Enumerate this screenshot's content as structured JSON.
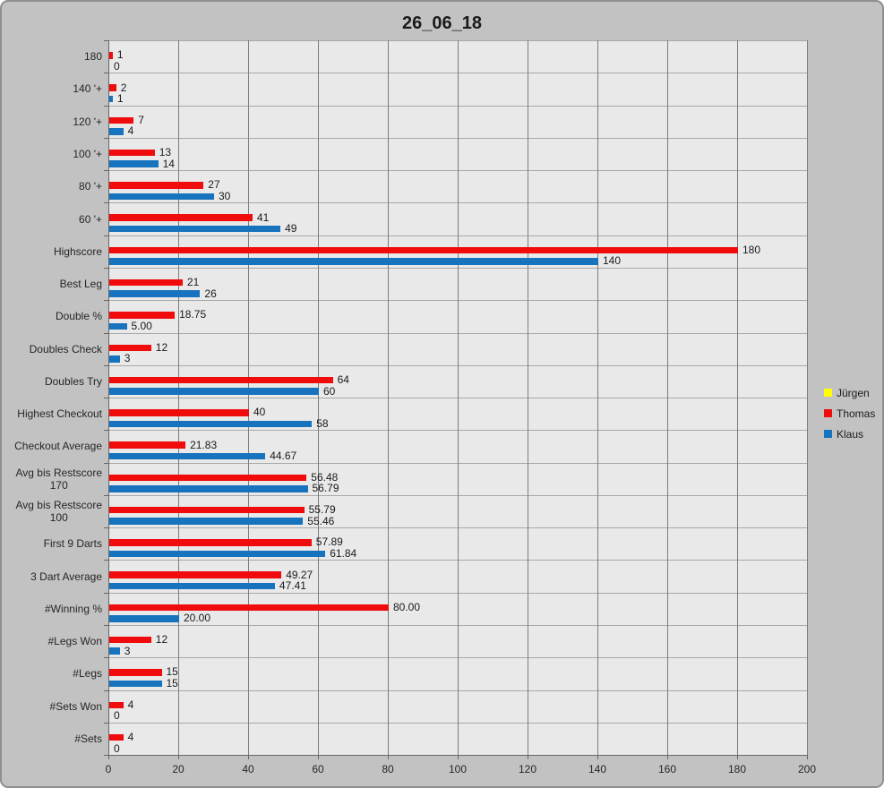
{
  "title": "26_06_18",
  "legend": {
    "position": "right",
    "items": [
      {
        "name": "Jürgen",
        "color": "#ffff00"
      },
      {
        "name": "Thomas",
        "color": "#f00c0c"
      },
      {
        "name": "Klaus",
        "color": "#1873be"
      }
    ]
  },
  "colors": {
    "chart_background": "#c2c2c2",
    "plot_background": "#e9e9e9",
    "vertical_gridline": "#7c7c7c",
    "horizontal_gridline": "#a8a8a8",
    "axis": "#666666"
  },
  "chart_data": {
    "type": "bar",
    "orientation": "horizontal",
    "title": "26_06_18",
    "categories": [
      "180",
      "140 '+",
      "120 '+",
      "100 '+",
      "80 '+",
      "60 '+",
      "Highscore",
      "Best Leg",
      "Double %",
      "Doubles Check",
      "Doubles Try",
      "Highest Checkout",
      "Checkout Average",
      "Avg bis Restscore 170",
      "Avg bis Restscore 100",
      "First 9 Darts",
      "3 Dart Average",
      "#Winning %",
      "#Legs Won",
      "#Legs",
      "#Sets Won",
      "#Sets"
    ],
    "series": [
      {
        "name": "Jürgen",
        "color": "#ffff00",
        "values": [],
        "labels": [],
        "note": "shown in legend only, no visible bars or data labels"
      },
      {
        "name": "Thomas",
        "color": "#f00c0c",
        "values": [
          1,
          2,
          7,
          13,
          27,
          41,
          180,
          21,
          18.75,
          12,
          64,
          40,
          21.83,
          56.48,
          55.79,
          57.89,
          49.27,
          80,
          12,
          15,
          4,
          4
        ],
        "labels": [
          "1",
          "2",
          "7",
          "13",
          "27",
          "41",
          "180",
          "21",
          "18.75",
          "12",
          "64",
          "40",
          "21.83",
          "56.48",
          "55.79",
          "57.89",
          "49.27",
          "80.00",
          "12",
          "15",
          "4",
          "4"
        ]
      },
      {
        "name": "Klaus",
        "color": "#1873be",
        "values": [
          0,
          1,
          4,
          14,
          30,
          49,
          140,
          26,
          5,
          3,
          60,
          58,
          44.67,
          56.79,
          55.46,
          61.84,
          47.41,
          20,
          3,
          15,
          0,
          0
        ],
        "labels": [
          "0",
          "1",
          "4",
          "14",
          "30",
          "49",
          "140",
          "26",
          "5.00",
          "3",
          "60",
          "58",
          "44.67",
          "56.79",
          "55.46",
          "61.84",
          "47.41",
          "20.00",
          "3",
          "15",
          "0",
          "0"
        ]
      }
    ],
    "xlim": [
      0,
      200
    ],
    "xticks": [
      0,
      20,
      40,
      60,
      80,
      100,
      120,
      140,
      160,
      180,
      200
    ],
    "grid": true,
    "legend_position": "right"
  }
}
